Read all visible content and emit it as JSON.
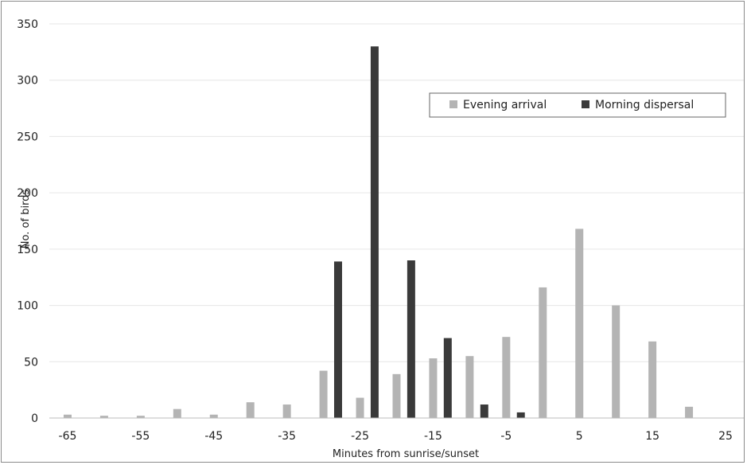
{
  "chart_data": {
    "type": "bar",
    "title": "",
    "xlabel": "Minutes from sunrise/sunset",
    "ylabel": "No. of birds",
    "ylim": [
      0,
      350
    ],
    "xlim": [
      -67.5,
      27.5
    ],
    "yticks": [
      0,
      50,
      100,
      150,
      200,
      250,
      300,
      350
    ],
    "xticks": [
      -65,
      -55,
      -45,
      -35,
      -25,
      -15,
      -5,
      5,
      15,
      25
    ],
    "grid": true,
    "legend_position": "top-right",
    "series": [
      {
        "name": "Evening arrival",
        "color": "#b4b4b4",
        "x": [
          -65,
          -60,
          -55,
          -50,
          -45,
          -40,
          -35,
          -30,
          -25,
          -20,
          -15,
          -10,
          -5,
          0,
          5,
          10,
          15,
          20
        ],
        "values": [
          3,
          2,
          2,
          8,
          3,
          14,
          12,
          42,
          18,
          39,
          53,
          55,
          72,
          116,
          168,
          100,
          68,
          10
        ]
      },
      {
        "name": "Morning dispersal",
        "color": "#3a3a3a",
        "x": [
          -28,
          -23,
          -18,
          -13,
          -8,
          -3
        ],
        "values": [
          139,
          330,
          140,
          71,
          12,
          5
        ]
      }
    ]
  }
}
